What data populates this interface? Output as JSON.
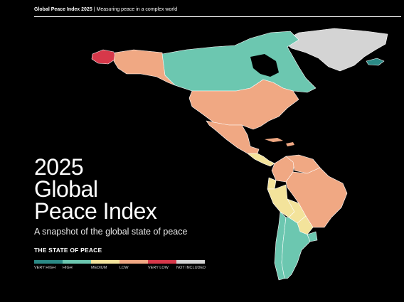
{
  "header": {
    "report_title": "Global Peace Index 2025",
    "separator": "|",
    "tagline": "Measuring peace in a complex world"
  },
  "title": {
    "line1": "2025",
    "line2": "Global",
    "line3": "Peace Index",
    "subtitle": "A snapshot of the global state of peace"
  },
  "legend": {
    "title": "THE STATE OF PEACE",
    "items": [
      {
        "label": "VERY HIGH",
        "color": "#2b8a86"
      },
      {
        "label": "HIGH",
        "color": "#6cc7b0"
      },
      {
        "label": "MEDIUM",
        "color": "#f3e39b"
      },
      {
        "label": "LOW",
        "color": "#f0a883"
      },
      {
        "label": "VERY LOW",
        "color": "#d7384a"
      },
      {
        "label": "NOT INCLUDED",
        "color": "#d4d4d4"
      }
    ]
  },
  "map": {
    "regions": [
      {
        "name": "Alaska",
        "level": "LOW"
      },
      {
        "name": "Chukotka",
        "level": "VERY LOW"
      },
      {
        "name": "Canada",
        "level": "HIGH"
      },
      {
        "name": "Greenland",
        "level": "NOT INCLUDED"
      },
      {
        "name": "Iceland",
        "level": "VERY HIGH"
      },
      {
        "name": "United States",
        "level": "LOW"
      },
      {
        "name": "Mexico",
        "level": "LOW"
      },
      {
        "name": "Central America",
        "level": "MEDIUM"
      },
      {
        "name": "Colombia",
        "level": "LOW"
      },
      {
        "name": "Venezuela",
        "level": "LOW"
      },
      {
        "name": "Ecuador",
        "level": "MEDIUM"
      },
      {
        "name": "Peru",
        "level": "MEDIUM"
      },
      {
        "name": "Bolivia",
        "level": "MEDIUM"
      },
      {
        "name": "Brazil",
        "level": "LOW"
      },
      {
        "name": "Paraguay",
        "level": "MEDIUM"
      },
      {
        "name": "Chile",
        "level": "HIGH"
      },
      {
        "name": "Argentina",
        "level": "HIGH"
      },
      {
        "name": "Uruguay",
        "level": "HIGH"
      }
    ]
  }
}
